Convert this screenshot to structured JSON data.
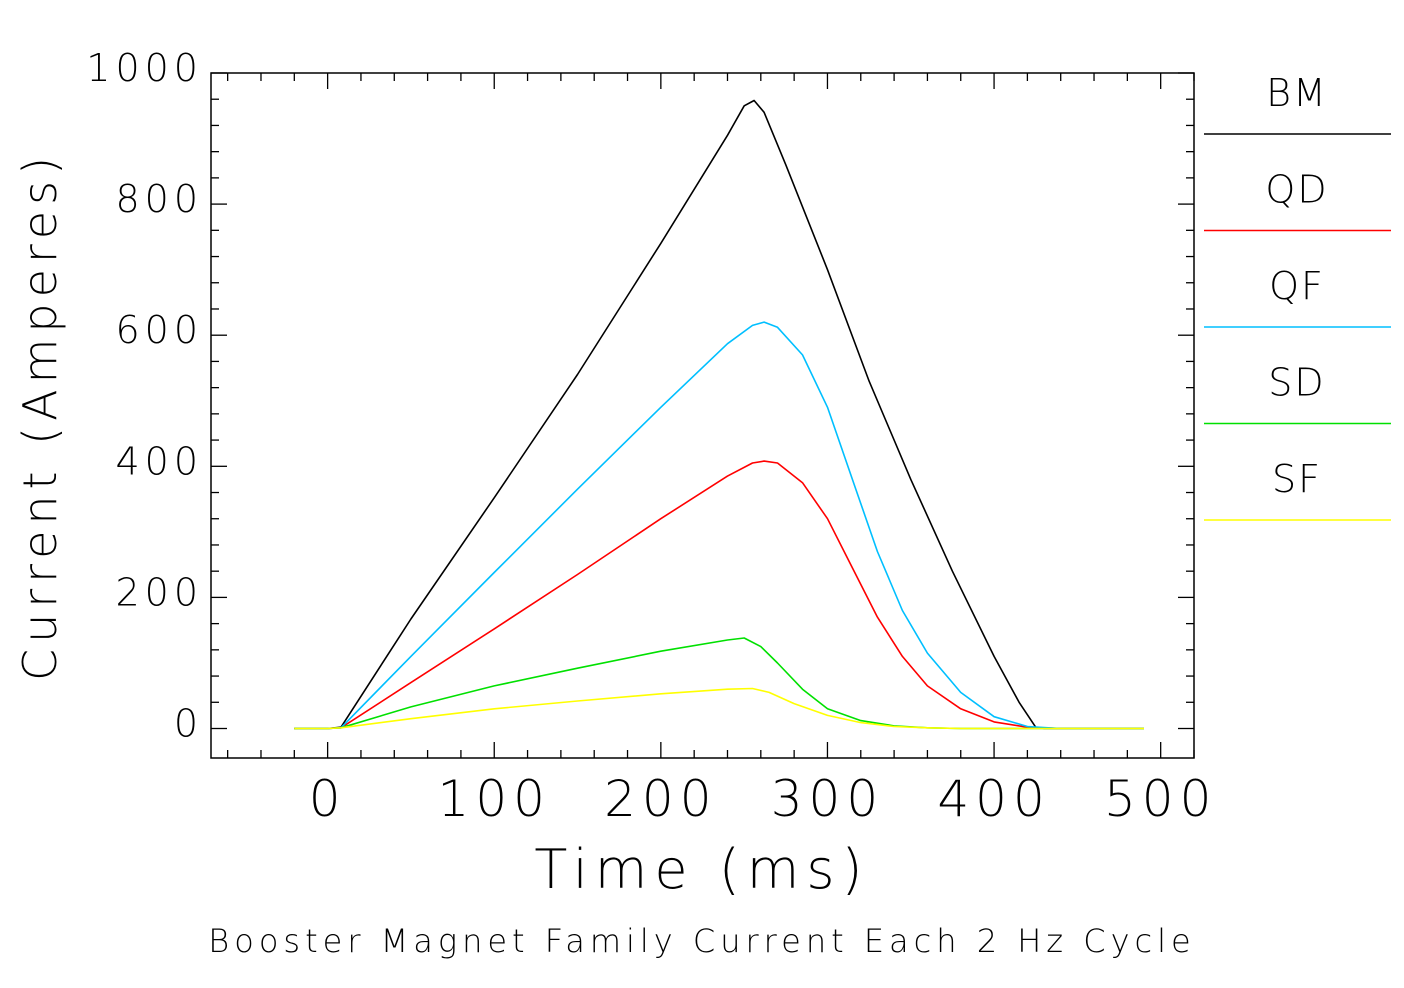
{
  "chart_data": {
    "type": "line",
    "title": "",
    "caption": "Booster Magnet Family Current Each 2 Hz Cycle",
    "xlabel": "Time (ms)",
    "ylabel": "Current (Amperes)",
    "xlim": [
      -70,
      520
    ],
    "ylim": [
      -45,
      1000
    ],
    "xticks": [
      0,
      100,
      200,
      300,
      400,
      500
    ],
    "yticks": [
      0,
      200,
      400,
      600,
      800,
      1000
    ],
    "x_minor_step": 20,
    "y_minor_step": 40,
    "grid": false,
    "legend_position": "right",
    "series": [
      {
        "name": "BM",
        "color": "#000000",
        "points": [
          [
            -20,
            0
          ],
          [
            0,
            0
          ],
          [
            8,
            2
          ],
          [
            50,
            167
          ],
          [
            100,
            352
          ],
          [
            150,
            540
          ],
          [
            200,
            740
          ],
          [
            240,
            905
          ],
          [
            250,
            950
          ],
          [
            256,
            958
          ],
          [
            262,
            940
          ],
          [
            275,
            860
          ],
          [
            300,
            700
          ],
          [
            325,
            530
          ],
          [
            350,
            380
          ],
          [
            375,
            240
          ],
          [
            400,
            110
          ],
          [
            415,
            40
          ],
          [
            425,
            2
          ],
          [
            430,
            0
          ],
          [
            490,
            0
          ]
        ]
      },
      {
        "name": "QD",
        "color": "#ff0000",
        "points": [
          [
            -20,
            0
          ],
          [
            0,
            0
          ],
          [
            8,
            1
          ],
          [
            50,
            70
          ],
          [
            100,
            152
          ],
          [
            150,
            235
          ],
          [
            200,
            320
          ],
          [
            240,
            385
          ],
          [
            255,
            405
          ],
          [
            262,
            408
          ],
          [
            270,
            405
          ],
          [
            285,
            375
          ],
          [
            300,
            320
          ],
          [
            315,
            245
          ],
          [
            330,
            170
          ],
          [
            345,
            110
          ],
          [
            360,
            65
          ],
          [
            380,
            30
          ],
          [
            400,
            10
          ],
          [
            420,
            2
          ],
          [
            440,
            0
          ],
          [
            490,
            0
          ]
        ]
      },
      {
        "name": "QF",
        "color": "#00bfff",
        "points": [
          [
            -20,
            0
          ],
          [
            0,
            0
          ],
          [
            8,
            1
          ],
          [
            50,
            110
          ],
          [
            100,
            238
          ],
          [
            150,
            365
          ],
          [
            200,
            490
          ],
          [
            240,
            587
          ],
          [
            255,
            615
          ],
          [
            262,
            620
          ],
          [
            270,
            612
          ],
          [
            285,
            570
          ],
          [
            300,
            490
          ],
          [
            315,
            380
          ],
          [
            330,
            270
          ],
          [
            345,
            180
          ],
          [
            360,
            115
          ],
          [
            380,
            55
          ],
          [
            400,
            18
          ],
          [
            420,
            3
          ],
          [
            440,
            0
          ],
          [
            490,
            0
          ]
        ]
      },
      {
        "name": "SD",
        "color": "#00e000",
        "points": [
          [
            -20,
            0
          ],
          [
            0,
            0
          ],
          [
            8,
            1
          ],
          [
            50,
            33
          ],
          [
            100,
            65
          ],
          [
            150,
            92
          ],
          [
            200,
            118
          ],
          [
            240,
            135
          ],
          [
            250,
            138
          ],
          [
            260,
            125
          ],
          [
            270,
            100
          ],
          [
            285,
            60
          ],
          [
            300,
            30
          ],
          [
            320,
            12
          ],
          [
            340,
            4
          ],
          [
            360,
            1
          ],
          [
            380,
            0
          ],
          [
            490,
            0
          ]
        ]
      },
      {
        "name": "SF",
        "color": "#ffff00",
        "points": [
          [
            -20,
            0
          ],
          [
            0,
            0
          ],
          [
            8,
            1
          ],
          [
            50,
            15
          ],
          [
            100,
            30
          ],
          [
            150,
            42
          ],
          [
            200,
            53
          ],
          [
            240,
            60
          ],
          [
            255,
            61
          ],
          [
            265,
            55
          ],
          [
            280,
            38
          ],
          [
            300,
            20
          ],
          [
            320,
            9
          ],
          [
            340,
            3
          ],
          [
            360,
            1
          ],
          [
            380,
            0
          ],
          [
            490,
            0
          ]
        ]
      }
    ]
  }
}
